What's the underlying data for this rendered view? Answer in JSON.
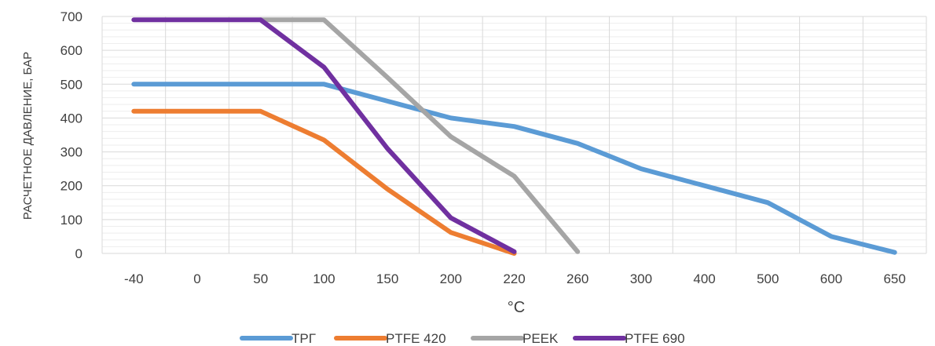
{
  "chart_data": {
    "type": "line",
    "ylabel": "РАСЧЕТНОЕ ДАВЛЕНИЕ, БАР",
    "xlabel": "°C",
    "ylim": [
      0,
      700
    ],
    "yticks": [
      "0",
      "100",
      "200",
      "300",
      "400",
      "500",
      "600",
      "700"
    ],
    "categories": [
      "-40",
      "0",
      "50",
      "100",
      "150",
      "200",
      "220",
      "260",
      "300",
      "400",
      "500",
      "600",
      "650"
    ],
    "grid": true,
    "legend_position": "bottom",
    "series": [
      {
        "name": "ТРГ",
        "color": "#5b9bd5",
        "points": [
          [
            0,
            500
          ],
          [
            3,
            500
          ],
          [
            4,
            450
          ],
          [
            5,
            400
          ],
          [
            6,
            375
          ],
          [
            7,
            325
          ],
          [
            8,
            250
          ],
          [
            9,
            200
          ],
          [
            10,
            150
          ],
          [
            11,
            50
          ],
          [
            12,
            3
          ]
        ]
      },
      {
        "name": "PTFE 420",
        "color": "#ed7d31",
        "points": [
          [
            0,
            420
          ],
          [
            2,
            420
          ],
          [
            3,
            335
          ],
          [
            4,
            190
          ],
          [
            5,
            62
          ],
          [
            6,
            0
          ]
        ]
      },
      {
        "name": "PEEK",
        "color": "#a5a5a5",
        "points": [
          [
            2,
            690
          ],
          [
            3,
            690
          ],
          [
            4,
            520
          ],
          [
            5,
            345
          ],
          [
            6,
            228
          ],
          [
            7,
            5
          ]
        ]
      },
      {
        "name": "PTFE 690",
        "color": "#7030a0",
        "points": [
          [
            0,
            690
          ],
          [
            2,
            690
          ],
          [
            3,
            550
          ],
          [
            4,
            310
          ],
          [
            5,
            105
          ],
          [
            6,
            5
          ]
        ]
      }
    ]
  }
}
